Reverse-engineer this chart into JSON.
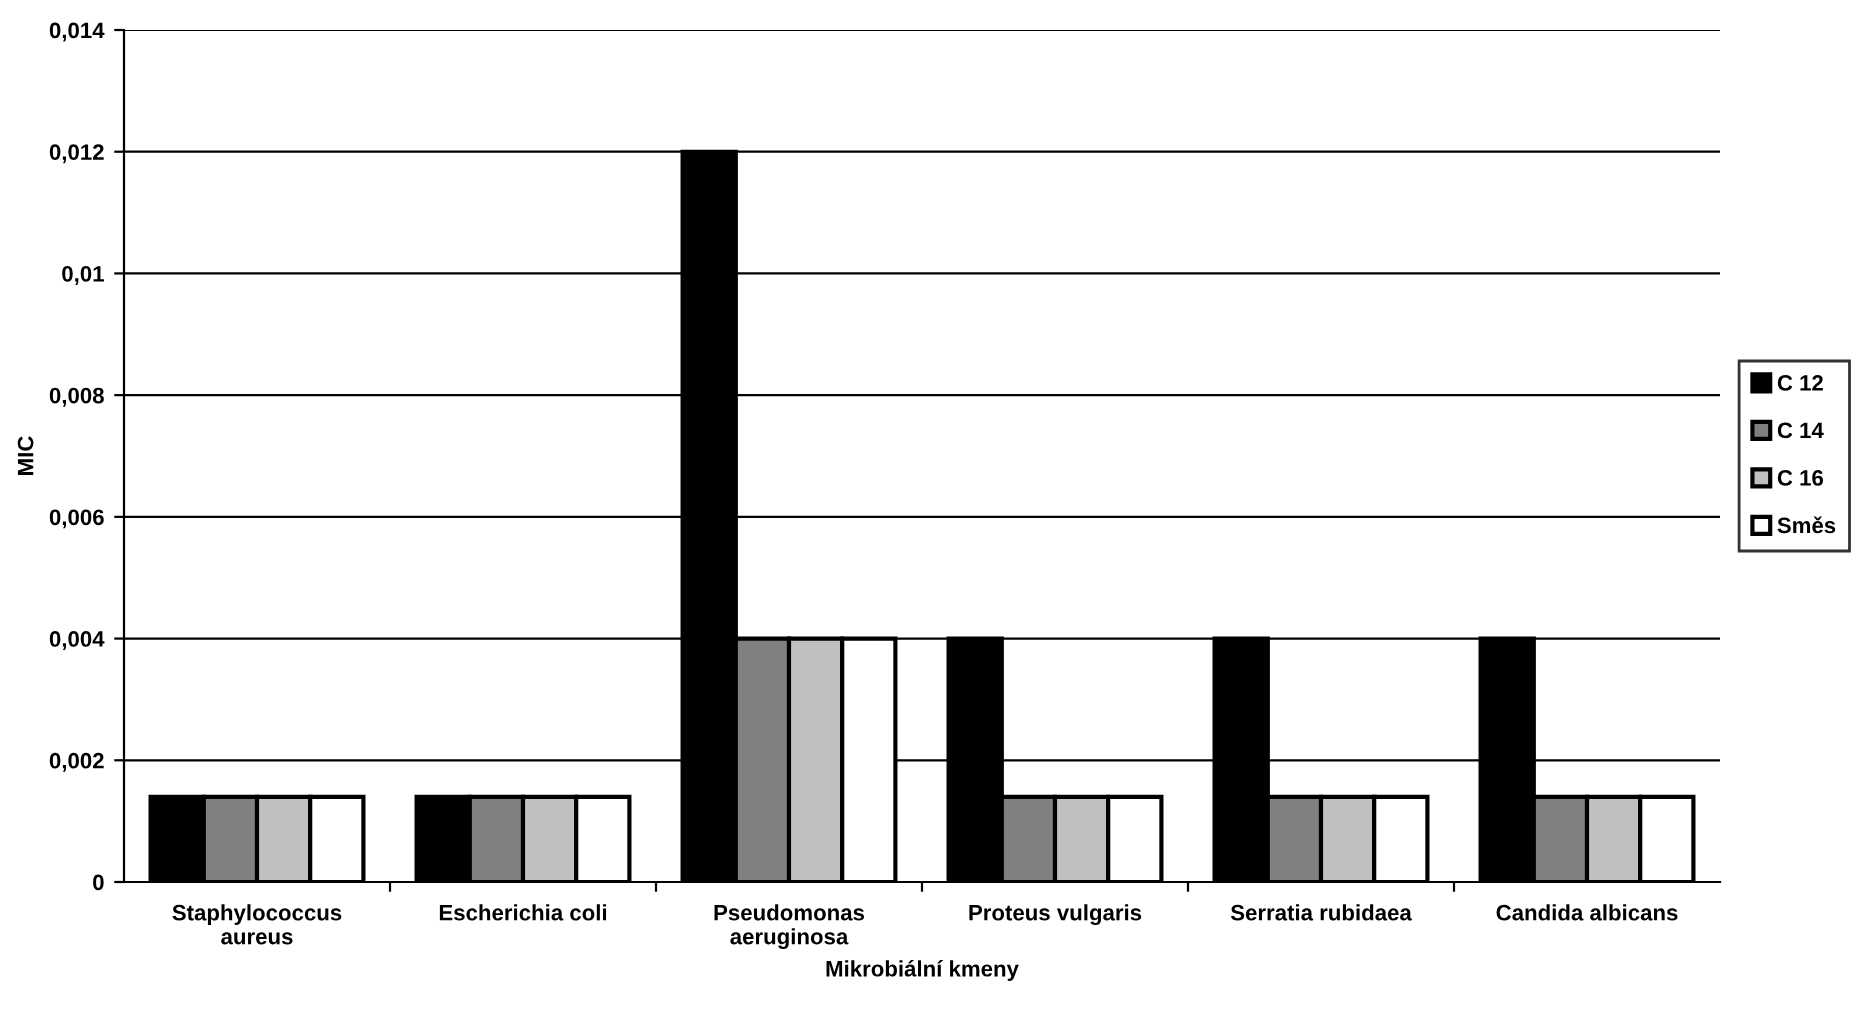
{
  "chart_data": {
    "type": "bar",
    "xlabel": "Mikrobiální kmeny",
    "ylabel": "MIC",
    "categories": [
      "Staphylococcus\naureus",
      "Escherichia coli",
      "Pseudomonas\naeruginosa",
      "Proteus vulgaris",
      "Serratia rubidaea",
      "Candida albicans"
    ],
    "series": [
      {
        "name": "C 12",
        "color": "#000000",
        "values": [
          0.0014,
          0.0014,
          0.012,
          0.004,
          0.004,
          0.004
        ]
      },
      {
        "name": "C 14",
        "color": "#808080",
        "values": [
          0.0014,
          0.0014,
          0.004,
          0.0014,
          0.0014,
          0.0014
        ]
      },
      {
        "name": "C 16",
        "color": "#c0c0c0",
        "values": [
          0.0014,
          0.0014,
          0.004,
          0.0014,
          0.0014,
          0.0014
        ]
      },
      {
        "name": "Směs",
        "color": "#ffffff",
        "values": [
          0.0014,
          0.0014,
          0.004,
          0.0014,
          0.0014,
          0.0014
        ]
      }
    ],
    "ylim": [
      0,
      0.014
    ],
    "yticks": [
      {
        "value": 0,
        "label": "0"
      },
      {
        "value": 0.002,
        "label": "0,002"
      },
      {
        "value": 0.004,
        "label": "0,004"
      },
      {
        "value": 0.006,
        "label": "0,006"
      },
      {
        "value": 0.008,
        "label": "0,008"
      },
      {
        "value": 0.01,
        "label": "0,01"
      },
      {
        "value": 0.012,
        "label": "0,012"
      },
      {
        "value": 0.014,
        "label": "0,014"
      }
    ],
    "grid": "y",
    "legend": "right"
  }
}
